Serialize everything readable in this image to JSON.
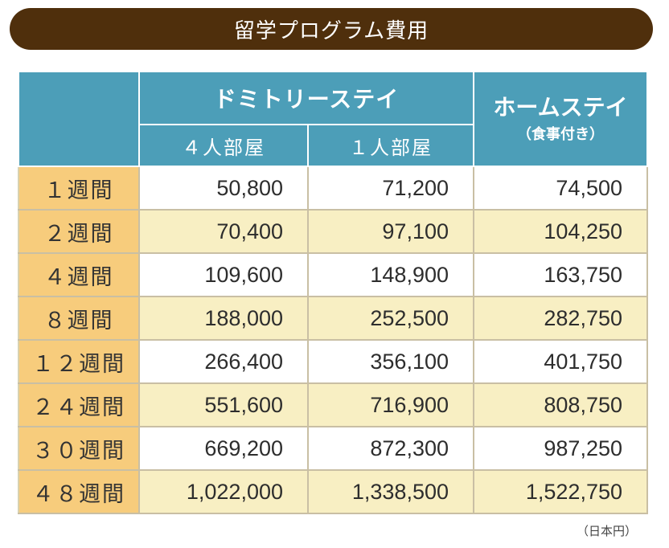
{
  "title": "留学プログラム費用",
  "columns": {
    "dormitory": "ドミトリーステイ",
    "dorm_sub": [
      "４人部屋",
      "１人部屋"
    ],
    "homestay": "ホームステイ",
    "homestay_sub": "（食事付き）"
  },
  "rows": [
    {
      "period": "１週間",
      "values": [
        "50,800",
        "71,200",
        "74,500"
      ]
    },
    {
      "period": "２週間",
      "values": [
        "70,400",
        "97,100",
        "104,250"
      ]
    },
    {
      "period": "４週間",
      "values": [
        "109,600",
        "148,900",
        "163,750"
      ]
    },
    {
      "period": "８週間",
      "values": [
        "188,000",
        "252,500",
        "282,750"
      ]
    },
    {
      "period": "１２週間",
      "values": [
        "266,400",
        "356,100",
        "401,750"
      ]
    },
    {
      "period": "２４週間",
      "values": [
        "551,600",
        "716,900",
        "808,750"
      ]
    },
    {
      "period": "３０週間",
      "values": [
        "669,200",
        "872,300",
        "987,250"
      ]
    },
    {
      "period": "４８週間",
      "values": [
        "1,022,000",
        "1,338,500",
        "1,522,750"
      ]
    }
  ],
  "currency_note": "（日本円）",
  "colors": {
    "title_bg": "#4f2f0c",
    "header_bg": "#4c9eb8",
    "period_bg": "#f7cc7c",
    "cream_row": "#f8efc3"
  }
}
